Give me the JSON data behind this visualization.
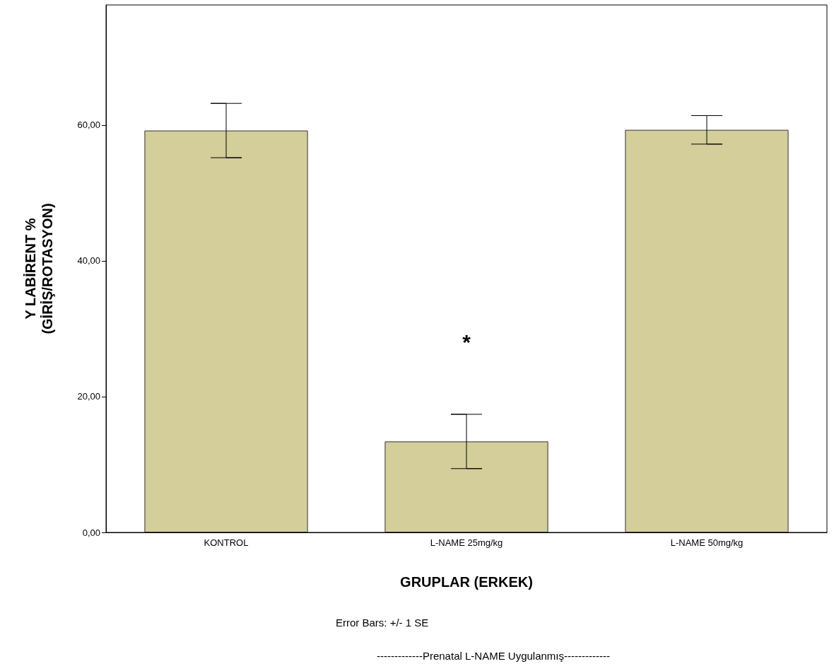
{
  "chart_data": {
    "type": "bar",
    "xlabel": "GRUPLAR (ERKEK)",
    "ylabel": "Y LABİRENT %\n(GİRİŞ/ROTASYON)",
    "categories": [
      "KONTROL",
      "L-NAME 25mg/kg",
      "L-NAME 50mg/kg"
    ],
    "values": [
      59.2,
      13.4,
      59.3
    ],
    "errors": [
      4.0,
      4.0,
      2.1
    ],
    "color": "#d3ce9a",
    "ylim": [
      0,
      77.7
    ],
    "yticks": [
      {
        "value": 0,
        "label": "0,00"
      },
      {
        "value": 20,
        "label": "20,00"
      },
      {
        "value": 40,
        "label": "40,00"
      },
      {
        "value": 60,
        "label": "60,00"
      }
    ],
    "grid": false,
    "annotations": [
      "*",
      "Error Bars: +/- 1 SE",
      "-------------Prenatal L-NAME Uygulanmış-------------"
    ]
  }
}
